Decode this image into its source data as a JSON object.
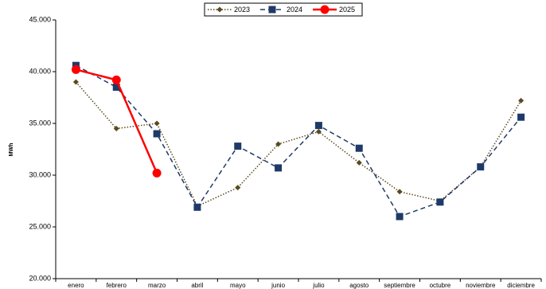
{
  "chart_data": {
    "type": "line",
    "y_label": "MWh",
    "categories": [
      "enero",
      "febrero",
      "marzo",
      "abril",
      "mayo",
      "junio",
      "julio",
      "agosto",
      "septiembre",
      "octubre",
      "noviembre",
      "diciembre"
    ],
    "series": [
      {
        "name": "2023",
        "color": "#5b4a1f",
        "line_style": "dotted",
        "marker": "diamond",
        "values": [
          39000,
          34500,
          35000,
          27000,
          28800,
          33000,
          34200,
          31200,
          28400,
          27500,
          30800,
          37200
        ]
      },
      {
        "name": "2024",
        "color": "#1f3a68",
        "line_style": "dashed",
        "marker": "square",
        "values": [
          40600,
          38500,
          34000,
          26900,
          32800,
          30700,
          34800,
          32600,
          26000,
          27400,
          30800,
          35600
        ]
      },
      {
        "name": "2025",
        "color": "#ff0000",
        "line_style": "solid",
        "marker": "circle",
        "values": [
          40200,
          39200,
          30200,
          null,
          null,
          null,
          null,
          null,
          null,
          null,
          null,
          null
        ]
      }
    ],
    "ylim": [
      20000,
      45000
    ],
    "yticks": [
      {
        "value": 20000,
        "label": "20.000"
      },
      {
        "value": 25000,
        "label": "25.000"
      },
      {
        "value": 30000,
        "label": "30.000"
      },
      {
        "value": 35000,
        "label": "35.000"
      },
      {
        "value": 40000,
        "label": "40.000"
      },
      {
        "value": 45000,
        "label": "45.000"
      }
    ],
    "grid": false,
    "legend": "top"
  }
}
